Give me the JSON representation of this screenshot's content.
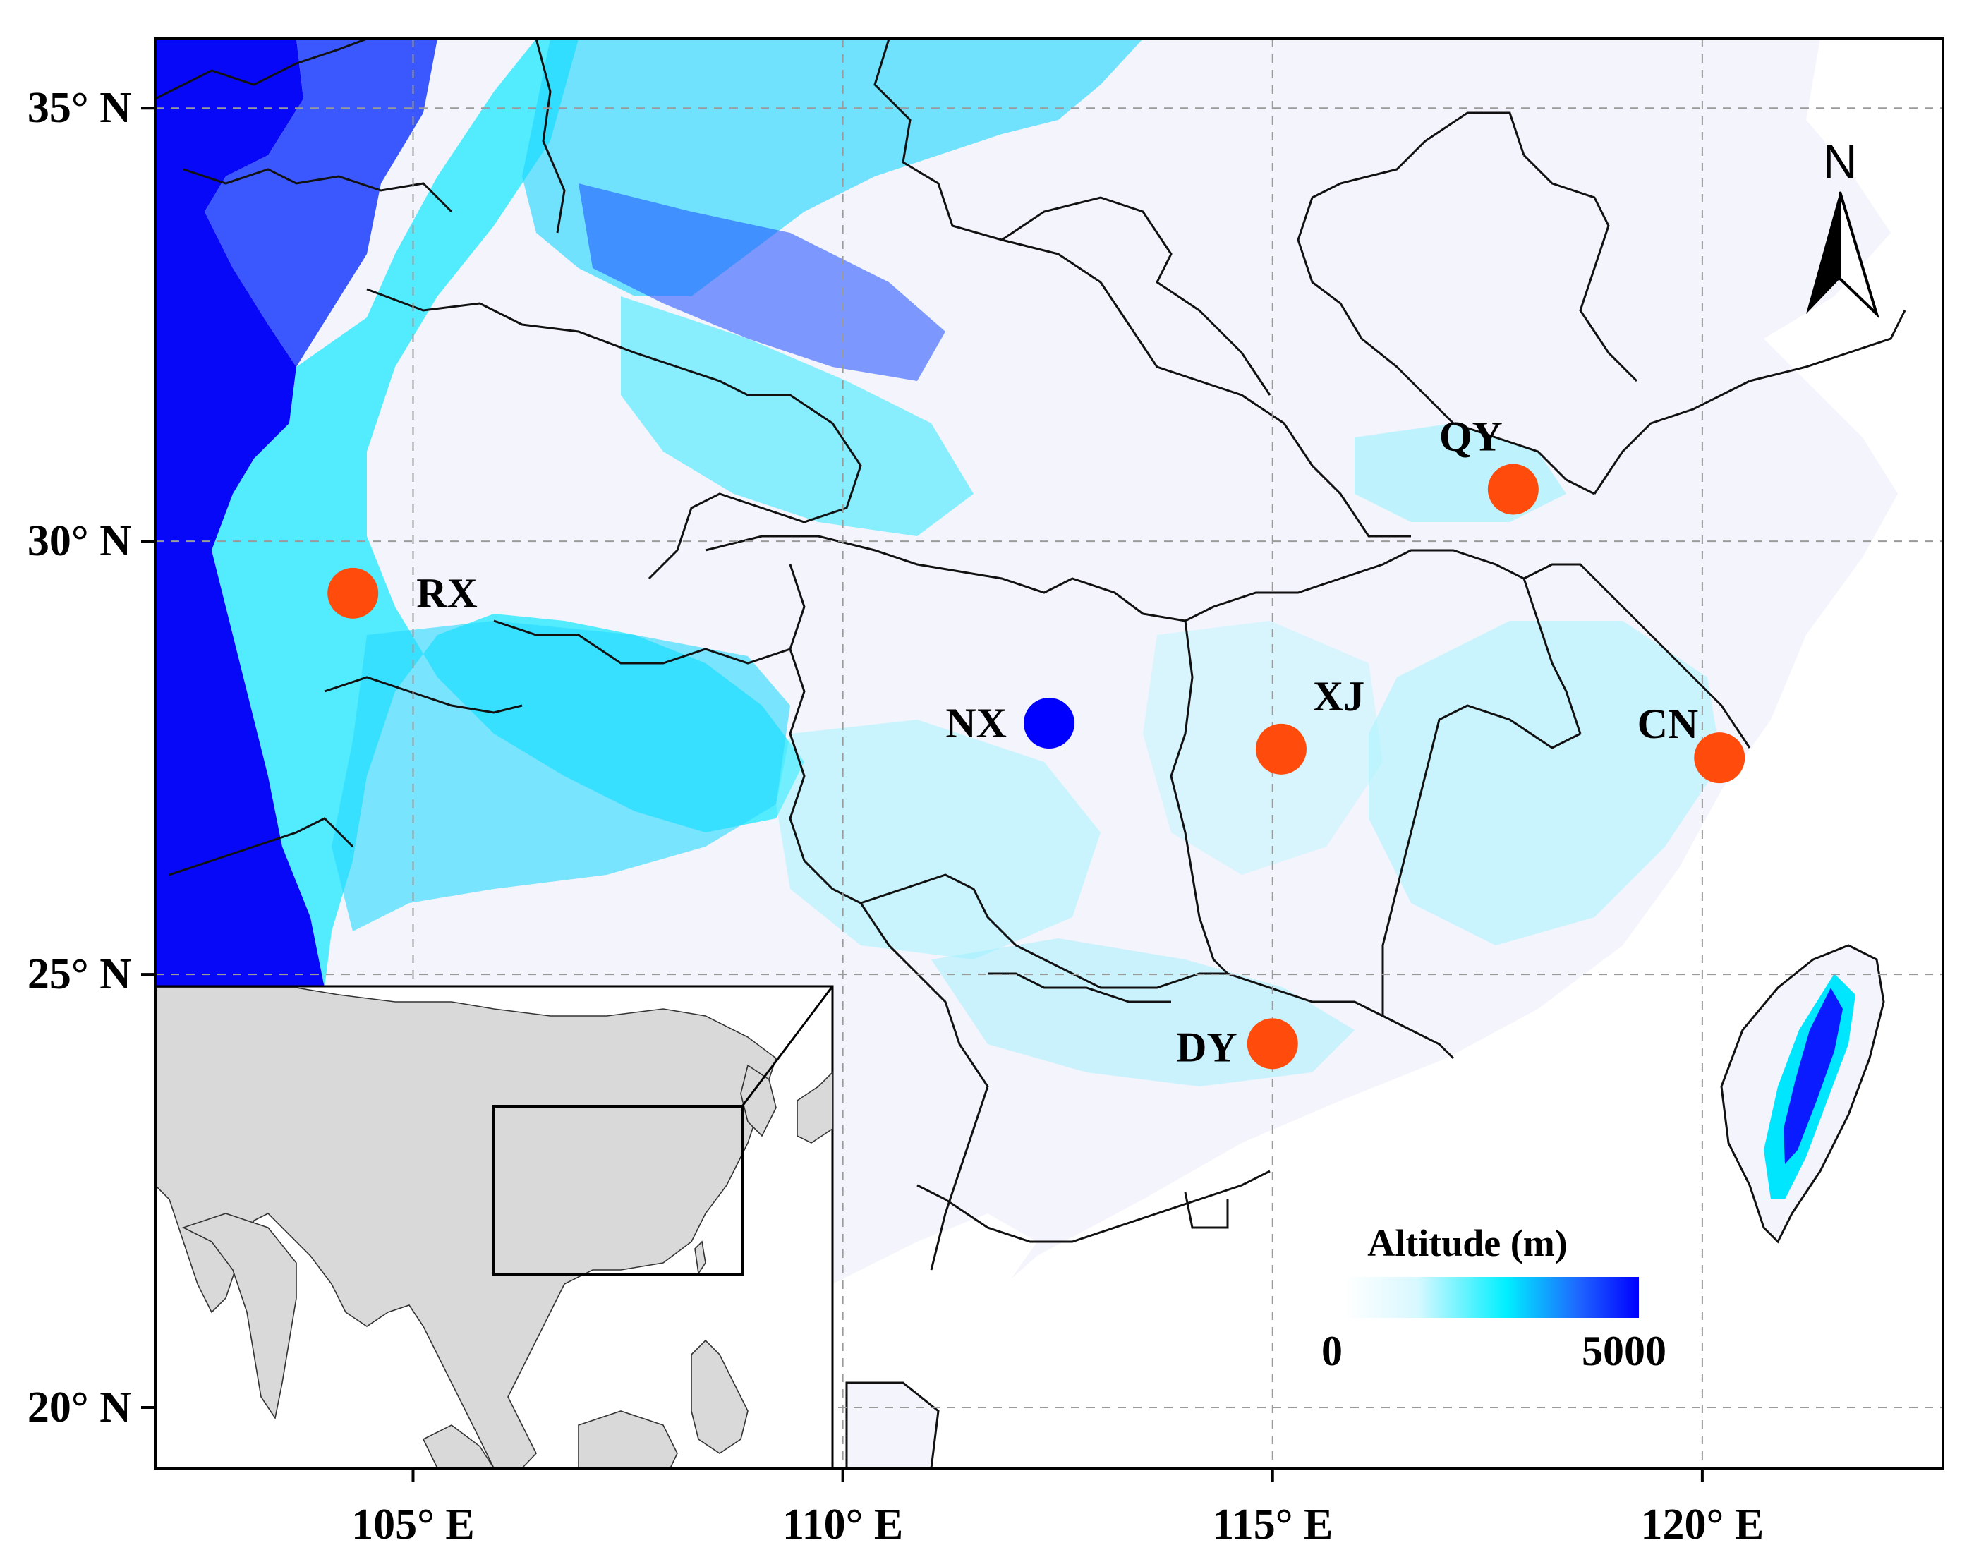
{
  "map": {
    "lon_range": [
      102,
      122.8
    ],
    "lat_range": [
      19.3,
      35.8
    ],
    "x_ticks": [
      {
        "value": 105,
        "label": "105° E"
      },
      {
        "value": 110,
        "label": "110° E"
      },
      {
        "value": 115,
        "label": "115° E"
      },
      {
        "value": 120,
        "label": "120° E"
      }
    ],
    "y_ticks": [
      {
        "value": 35,
        "label": "35° N"
      },
      {
        "value": 30,
        "label": "30° N"
      },
      {
        "value": 25,
        "label": "25° N"
      },
      {
        "value": 20,
        "label": "20° N"
      }
    ],
    "grid": true,
    "north_arrow": {
      "label": "N"
    },
    "legend": {
      "title": "Altitude (m)",
      "min_label": "0",
      "max_label": "5000",
      "colors": [
        "#ffffff",
        "#d8f8ff",
        "#00f0ff",
        "#1e64ff",
        "#0000ff"
      ]
    },
    "sites": [
      {
        "id": "RX",
        "label": "RX",
        "lon": 104.3,
        "lat": 29.4,
        "color": "#ff4c0c"
      },
      {
        "id": "NX",
        "label": "NX",
        "lon": 112.4,
        "lat": 27.9,
        "color": "#0000ff"
      },
      {
        "id": "XJ",
        "label": "XJ",
        "lon": 115.1,
        "lat": 27.6,
        "color": "#ff4c0c"
      },
      {
        "id": "QY",
        "label": "QY",
        "lon": 117.8,
        "lat": 30.6,
        "color": "#ff4c0c"
      },
      {
        "id": "CN",
        "label": "CN",
        "lon": 120.2,
        "lat": 27.5,
        "color": "#ff4c0c"
      },
      {
        "id": "DY",
        "label": "DY",
        "lon": 115.0,
        "lat": 24.2,
        "color": "#ff4c0c"
      }
    ]
  }
}
